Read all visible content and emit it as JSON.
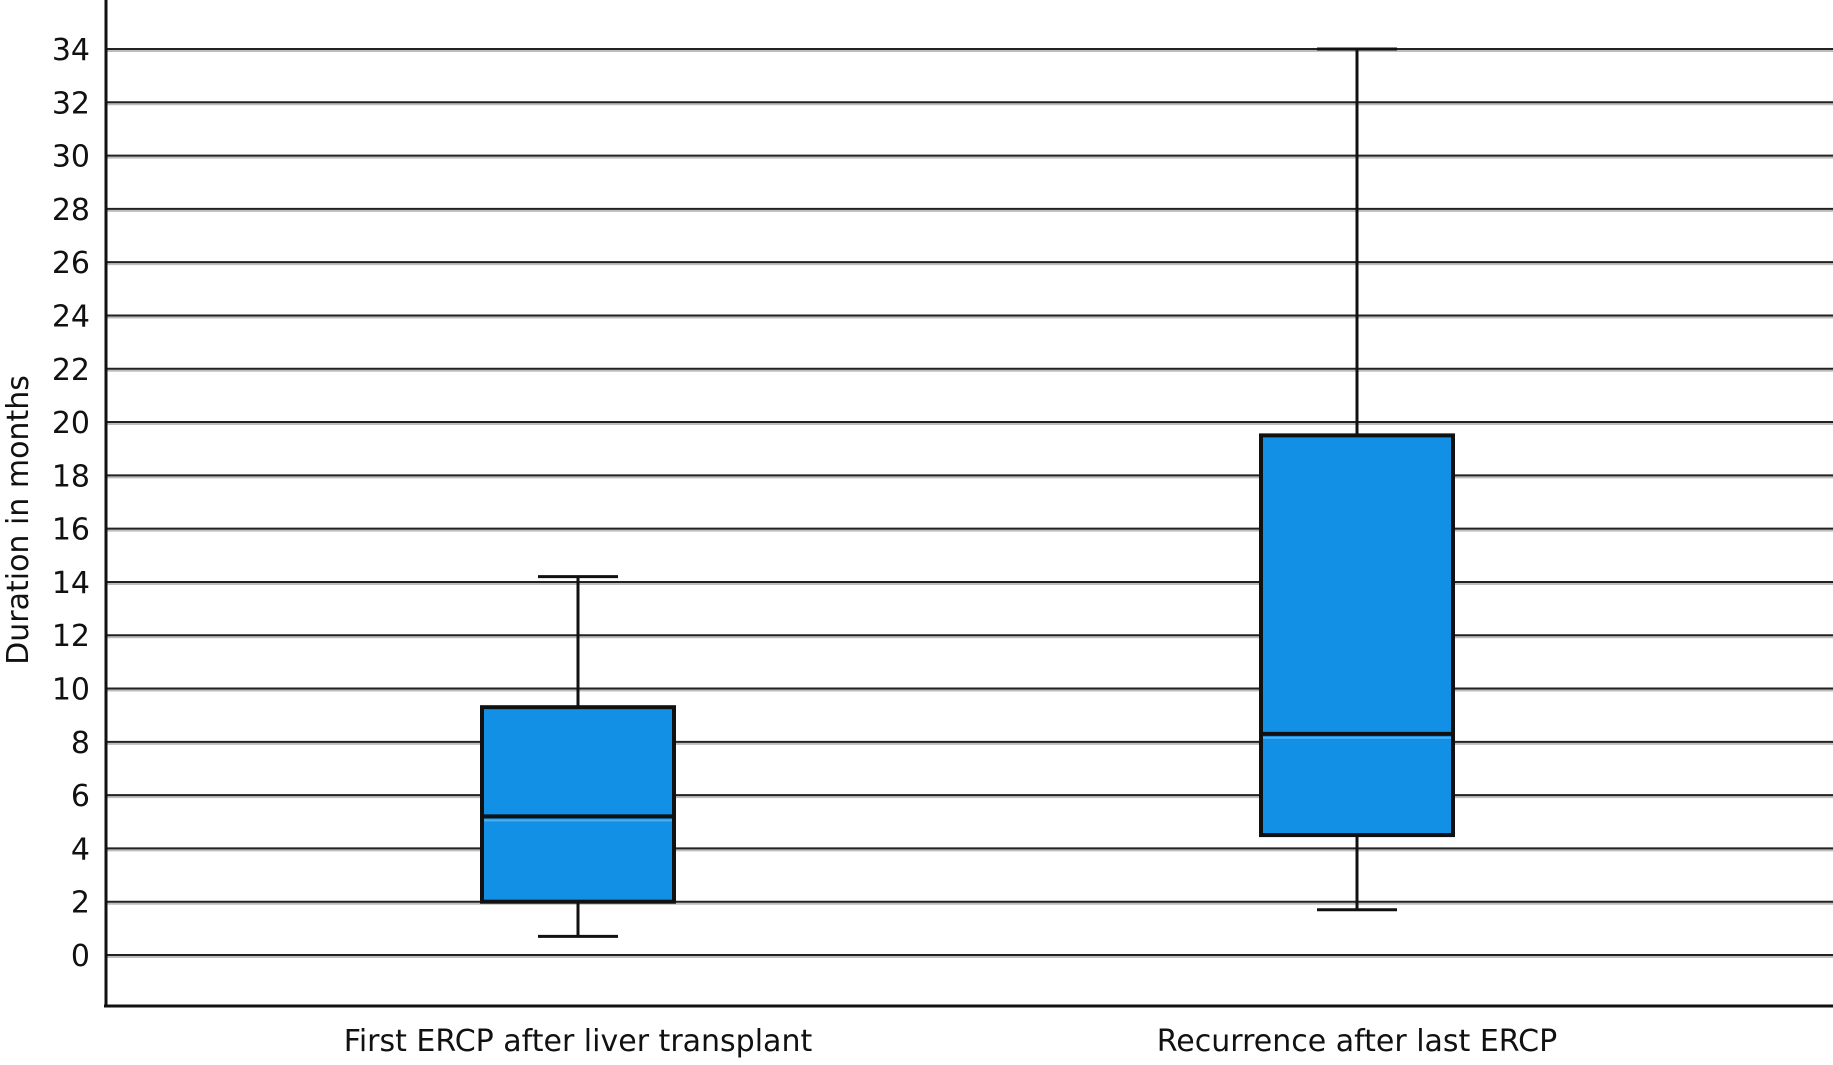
{
  "chart_data": {
    "type": "box",
    "ylabel": "Duration in months",
    "ylim": [
      -2,
      36
    ],
    "yticks": [
      0,
      2,
      4,
      6,
      8,
      10,
      12,
      14,
      16,
      18,
      20,
      22,
      24,
      26,
      28,
      30,
      32,
      34
    ],
    "grid": true,
    "categories": [
      "First ERCP after liver transplant",
      "Recurrence after last ERCP"
    ],
    "boxes": [
      {
        "category": "First ERCP after liver transplant",
        "whisker_low": 0.7,
        "q1": 2.0,
        "median": 5.2,
        "q3": 9.3,
        "whisker_high": 14.2
      },
      {
        "category": "Recurrence after last ERCP",
        "whisker_low": 1.7,
        "q1": 4.5,
        "median": 8.3,
        "q3": 19.5,
        "whisker_high": 34.0
      }
    ],
    "colors": {
      "box_fill": "#1190E6",
      "box_stroke": "#111111",
      "median_highlight": "#4FB0F0",
      "grid": "#222222",
      "grid_shadow": "#BDBDBD"
    }
  }
}
